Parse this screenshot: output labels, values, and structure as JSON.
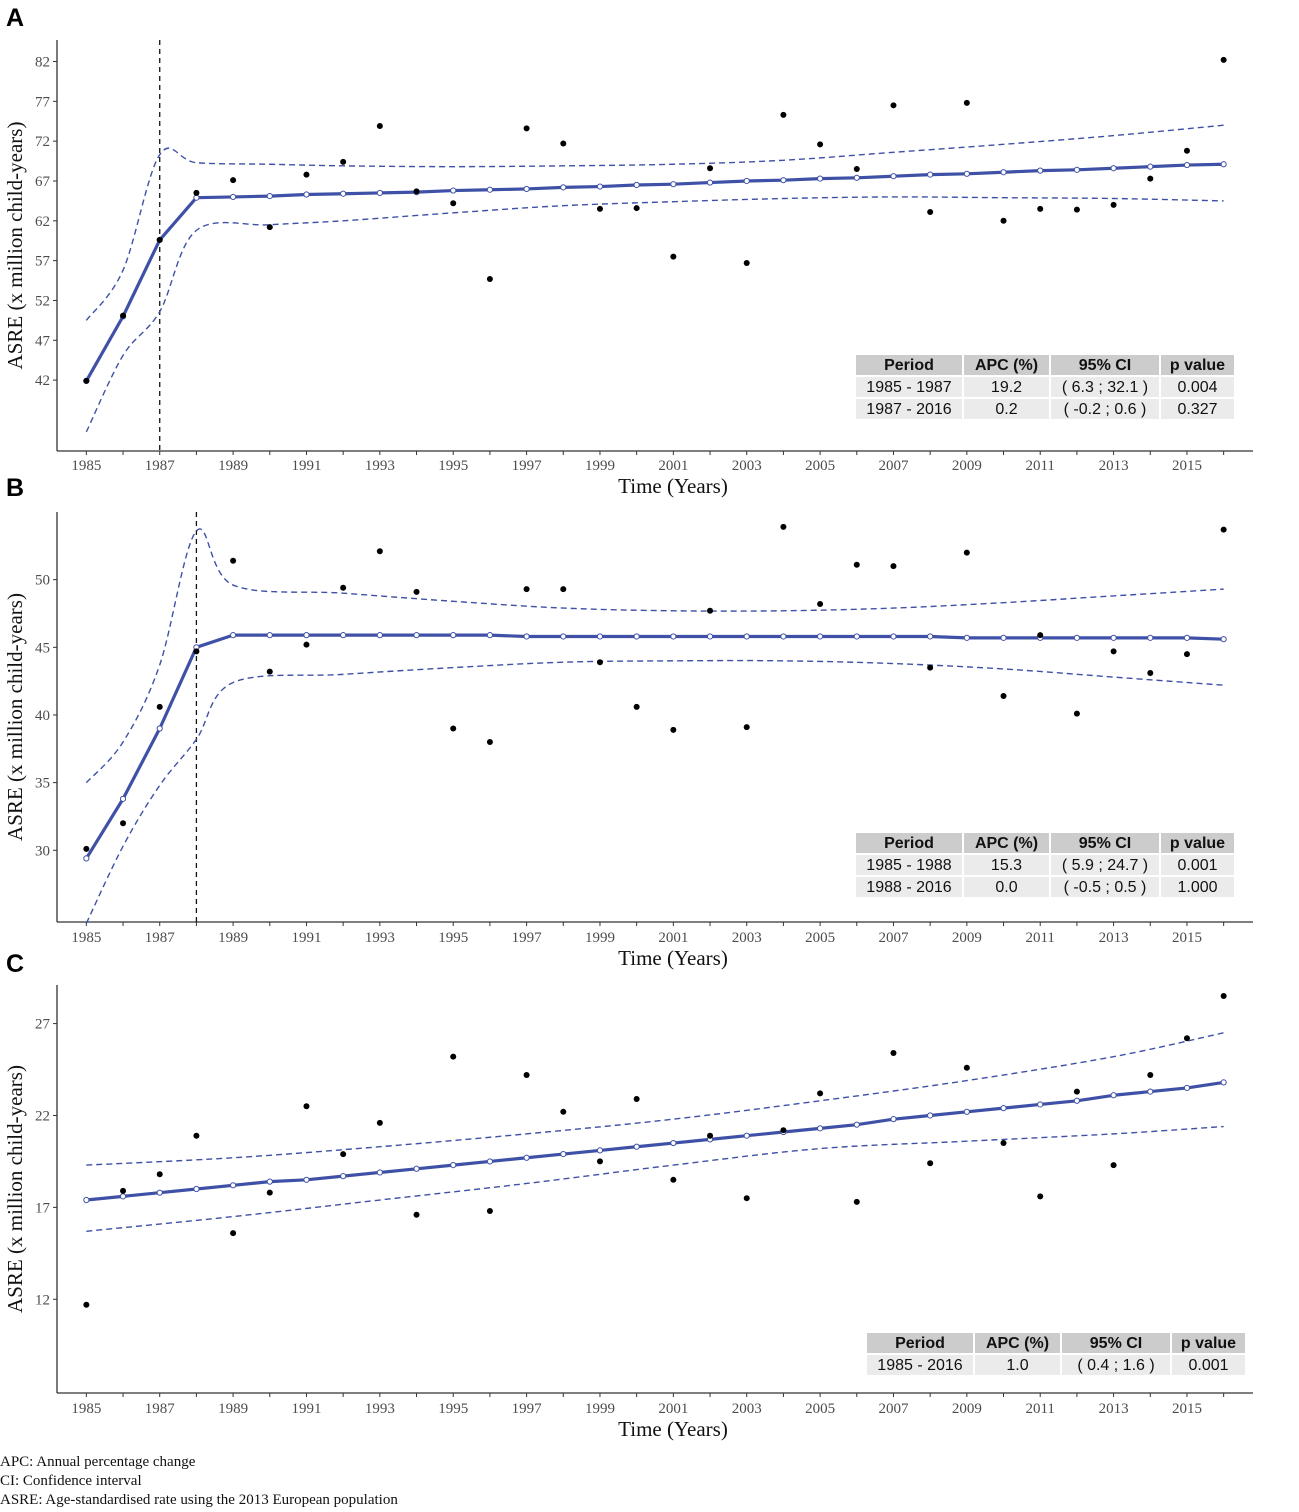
{
  "footnotes": [
    "APC: Annual percentage change",
    "CI: Confidence interval",
    "ASRE: Age-standardised rate using the 2013 European population"
  ],
  "colors": {
    "fit": "#3f51a6",
    "ci": "#3f51a6",
    "points": "#000000",
    "table_header": "#cccccc",
    "table_row": "#ebebeb"
  },
  "chart_data": [
    {
      "type": "scatter",
      "panel_label": "A",
      "xlabel": "Time (Years)",
      "ylabel": "ASRE (x million child-years)",
      "xlim": [
        1984.2,
        2016.8
      ],
      "ylim": [
        33.1,
        84.7
      ],
      "yticks": [
        42,
        47,
        52,
        57,
        62,
        67,
        72,
        77,
        82
      ],
      "xticks": [
        1985,
        1987,
        1989,
        1991,
        1993,
        1995,
        1997,
        1999,
        2001,
        2003,
        2005,
        2007,
        2009,
        2011,
        2013,
        2015
      ],
      "joinpoint": 1987,
      "observed": {
        "x": [
          1985,
          1986,
          1987,
          1988,
          1989,
          1990,
          1991,
          1992,
          1993,
          1994,
          1995,
          1996,
          1997,
          1998,
          1999,
          2000,
          2001,
          2002,
          2003,
          2004,
          2005,
          2006,
          2007,
          2008,
          2009,
          2010,
          2011,
          2012,
          2013,
          2014,
          2015,
          2016
        ],
        "y": [
          41.9,
          50.1,
          59.6,
          65.5,
          67.1,
          61.2,
          67.8,
          69.4,
          73.9,
          65.7,
          64.2,
          54.7,
          73.6,
          71.7,
          63.5,
          63.6,
          57.5,
          68.6,
          56.7,
          75.3,
          71.6,
          68.5,
          76.5,
          63.1,
          76.8,
          62.0,
          63.5,
          63.4,
          64.0,
          67.3,
          70.8,
          82.2
        ]
      },
      "fitted": {
        "x": [
          1985,
          1986,
          1987,
          1988,
          1989,
          1990,
          1991,
          1992,
          1993,
          1994,
          1995,
          1996,
          1997,
          1998,
          1999,
          2000,
          2001,
          2002,
          2003,
          2004,
          2005,
          2006,
          2007,
          2008,
          2009,
          2010,
          2011,
          2012,
          2013,
          2014,
          2015,
          2016
        ],
        "y": [
          41.9,
          50.0,
          59.6,
          64.9,
          65.0,
          65.1,
          65.3,
          65.4,
          65.5,
          65.6,
          65.8,
          65.9,
          66.0,
          66.2,
          66.3,
          66.5,
          66.6,
          66.8,
          67.0,
          67.1,
          67.3,
          67.4,
          67.6,
          67.8,
          67.9,
          68.1,
          68.3,
          68.4,
          68.6,
          68.8,
          69.0,
          69.1
        ]
      },
      "ci_upper": {
        "x": [
          1985,
          1986,
          1987,
          1988,
          1990,
          1992,
          1995,
          1998,
          2001,
          2004,
          2007,
          2010,
          2013,
          2016
        ],
        "y": [
          49.5,
          55.8,
          70.3,
          69.3,
          69.1,
          68.9,
          68.8,
          68.9,
          69.1,
          69.6,
          70.6,
          71.6,
          72.7,
          74.0
        ]
      },
      "ci_lower": {
        "x": [
          1985,
          1986,
          1987,
          1988,
          1990,
          1992,
          1995,
          1998,
          2001,
          2004,
          2007,
          2010,
          2013,
          2016
        ],
        "y": [
          35.5,
          45.1,
          50.6,
          60.8,
          61.5,
          62.0,
          63.0,
          63.9,
          64.4,
          64.8,
          65.0,
          64.9,
          64.8,
          64.5
        ]
      },
      "table": {
        "headers": [
          "Period",
          "APC (%)",
          "95% CI",
          "p value"
        ],
        "rows": [
          [
            "1985 - 1987",
            "19.2",
            "( 6.3 ; 32.1 )",
            "0.004"
          ],
          [
            "1987 - 2016",
            "0.2",
            "( -0.2 ; 0.6 )",
            "0.327"
          ]
        ]
      }
    },
    {
      "type": "scatter",
      "panel_label": "B",
      "xlabel": "Time (Years)",
      "ylabel": "ASRE (x million child-years)",
      "xlim": [
        1984.2,
        2016.8
      ],
      "ylim": [
        24.7,
        55.0
      ],
      "yticks": [
        30,
        35,
        40,
        45,
        50
      ],
      "xticks": [
        1985,
        1987,
        1989,
        1991,
        1993,
        1995,
        1997,
        1999,
        2001,
        2003,
        2005,
        2007,
        2009,
        2011,
        2013,
        2015
      ],
      "joinpoint": 1988,
      "observed": {
        "x": [
          1985,
          1986,
          1987,
          1988,
          1989,
          1990,
          1991,
          1992,
          1993,
          1994,
          1995,
          1996,
          1997,
          1998,
          1999,
          2000,
          2001,
          2002,
          2003,
          2004,
          2005,
          2006,
          2007,
          2008,
          2009,
          2010,
          2011,
          2012,
          2013,
          2014,
          2015,
          2016
        ],
        "y": [
          30.1,
          32.0,
          40.6,
          44.7,
          51.4,
          43.2,
          45.2,
          49.4,
          52.1,
          49.1,
          39.0,
          38.0,
          49.3,
          49.3,
          43.9,
          40.6,
          38.9,
          47.7,
          39.1,
          53.9,
          48.2,
          51.1,
          51.0,
          43.5,
          52.0,
          41.4,
          45.9,
          40.1,
          44.7,
          43.1,
          44.5,
          53.7
        ]
      },
      "fitted": {
        "x": [
          1985,
          1986,
          1987,
          1988,
          1989,
          1990,
          1991,
          1992,
          1993,
          1994,
          1995,
          1996,
          1997,
          1998,
          1999,
          2000,
          2001,
          2002,
          2003,
          2004,
          2005,
          2006,
          2007,
          2008,
          2009,
          2010,
          2011,
          2012,
          2013,
          2014,
          2015,
          2016
        ],
        "y": [
          29.4,
          33.8,
          39.0,
          45.0,
          45.9,
          45.9,
          45.9,
          45.9,
          45.9,
          45.9,
          45.9,
          45.9,
          45.8,
          45.8,
          45.8,
          45.8,
          45.8,
          45.8,
          45.8,
          45.8,
          45.8,
          45.8,
          45.8,
          45.8,
          45.7,
          45.7,
          45.7,
          45.7,
          45.7,
          45.7,
          45.7,
          45.6
        ]
      },
      "ci_upper": {
        "x": [
          1985,
          1986,
          1987,
          1988,
          1989,
          1992,
          1995,
          1998,
          2001,
          2004,
          2007,
          2010,
          2013,
          2016
        ],
        "y": [
          35.0,
          38.0,
          43.7,
          53.6,
          49.6,
          49.0,
          48.4,
          47.9,
          47.7,
          47.7,
          47.9,
          48.3,
          48.8,
          49.3
        ]
      },
      "ci_lower": {
        "x": [
          1985,
          1986,
          1987,
          1988,
          1989,
          1992,
          1995,
          1998,
          2001,
          2004,
          2007,
          2010,
          2013,
          2016
        ],
        "y": [
          24.6,
          30.3,
          34.8,
          38.2,
          42.4,
          43.0,
          43.5,
          43.9,
          44.0,
          44.0,
          43.8,
          43.4,
          42.8,
          42.2
        ]
      },
      "table": {
        "headers": [
          "Period",
          "APC (%)",
          "95% CI",
          "p value"
        ],
        "rows": [
          [
            "1985 - 1988",
            "15.3",
            "( 5.9 ; 24.7 )",
            "0.001"
          ],
          [
            "1988 - 2016",
            "0.0",
            "( -0.5 ; 0.5 )",
            "1.000"
          ]
        ]
      }
    },
    {
      "type": "scatter",
      "panel_label": "C",
      "xlabel": "Time (Years)",
      "ylabel": "ASRE (x million child-years)",
      "xlim": [
        1984.2,
        2016.8
      ],
      "ylim": [
        6.9,
        29.1
      ],
      "yticks": [
        12,
        17,
        22,
        27
      ],
      "xticks": [
        1985,
        1987,
        1989,
        1991,
        1993,
        1995,
        1997,
        1999,
        2001,
        2003,
        2005,
        2007,
        2009,
        2011,
        2013,
        2015
      ],
      "joinpoint": null,
      "observed": {
        "x": [
          1985,
          1986,
          1987,
          1988,
          1989,
          1990,
          1991,
          1992,
          1993,
          1994,
          1995,
          1996,
          1997,
          1998,
          1999,
          2000,
          2001,
          2002,
          2003,
          2004,
          2005,
          2006,
          2007,
          2008,
          2009,
          2010,
          2011,
          2012,
          2013,
          2014,
          2015,
          2016
        ],
        "y": [
          11.7,
          17.9,
          18.8,
          20.9,
          15.6,
          17.8,
          22.5,
          19.9,
          21.6,
          16.6,
          25.2,
          16.8,
          24.2,
          22.2,
          19.5,
          22.9,
          18.5,
          20.9,
          17.5,
          21.2,
          23.2,
          17.3,
          25.4,
          19.4,
          24.6,
          20.5,
          17.6,
          23.3,
          19.3,
          24.2,
          26.2,
          28.5
        ]
      },
      "fitted": {
        "x": [
          1985,
          1986,
          1987,
          1988,
          1989,
          1990,
          1991,
          1992,
          1993,
          1994,
          1995,
          1996,
          1997,
          1998,
          1999,
          2000,
          2001,
          2002,
          2003,
          2004,
          2005,
          2006,
          2007,
          2008,
          2009,
          2010,
          2011,
          2012,
          2013,
          2014,
          2015,
          2016
        ],
        "y": [
          17.4,
          17.6,
          17.8,
          18.0,
          18.2,
          18.4,
          18.5,
          18.7,
          18.9,
          19.1,
          19.3,
          19.5,
          19.7,
          19.9,
          20.1,
          20.3,
          20.5,
          20.7,
          20.9,
          21.1,
          21.3,
          21.5,
          21.8,
          22.0,
          22.2,
          22.4,
          22.6,
          22.8,
          23.1,
          23.3,
          23.5,
          23.8
        ]
      },
      "ci_upper": {
        "x": [
          1985,
          1989,
          1993,
          1997,
          2001,
          2005,
          2009,
          2013,
          2016
        ],
        "y": [
          19.3,
          19.7,
          20.3,
          21.0,
          21.8,
          22.8,
          23.9,
          25.2,
          26.5
        ]
      },
      "ci_lower": {
        "x": [
          1985,
          1989,
          1993,
          1997,
          2001,
          2005,
          2009,
          2013,
          2016
        ],
        "y": [
          15.7,
          16.5,
          17.4,
          18.3,
          19.3,
          20.2,
          20.6,
          21.0,
          21.4
        ]
      },
      "table": {
        "headers": [
          "Period",
          "APC (%)",
          "95% CI",
          "p value"
        ],
        "rows": [
          [
            "1985 - 2016",
            "1.0",
            "( 0.4 ; 1.6 )",
            "0.001"
          ]
        ]
      }
    }
  ]
}
